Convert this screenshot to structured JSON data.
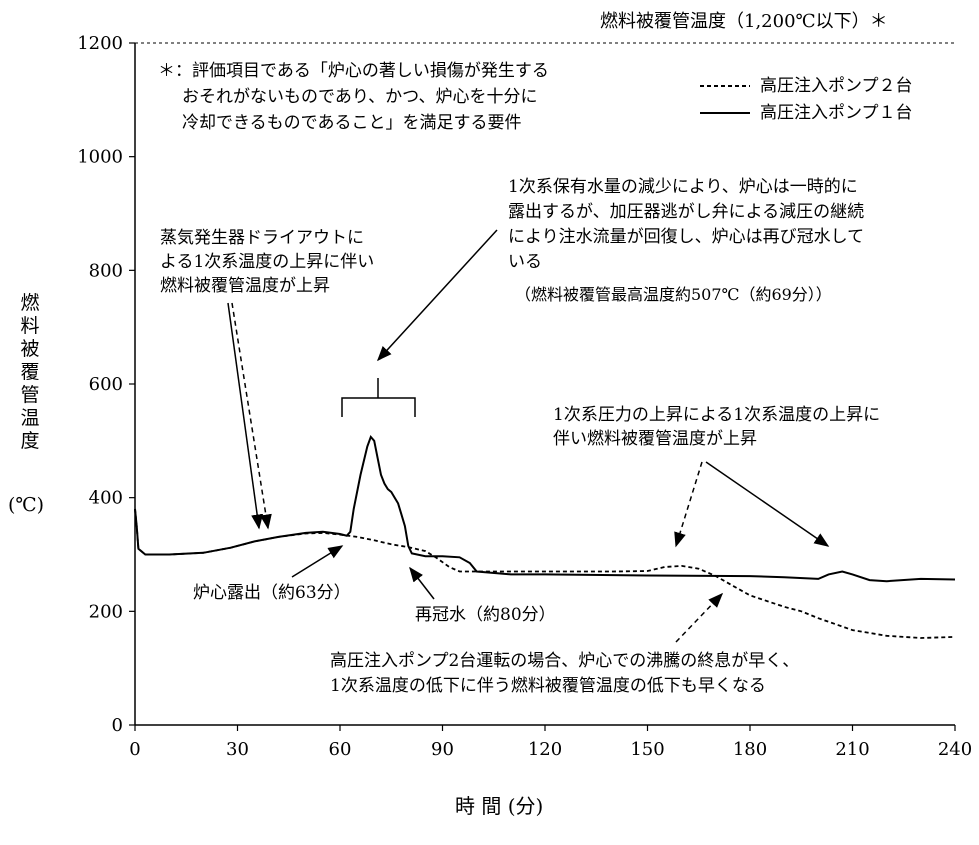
{
  "chart_data": {
    "type": "line",
    "ylabel": "燃料被覆管温度",
    "yunit": "(℃)",
    "xlabel": "時 間 (分)",
    "xlim": [
      0,
      240
    ],
    "ylim": [
      0,
      1200
    ],
    "xticks": [
      0,
      30,
      60,
      90,
      120,
      150,
      180,
      210,
      240
    ],
    "yticks": [
      0,
      200,
      400,
      600,
      800,
      1000,
      1200
    ],
    "grid": false,
    "legend_position": "top-right",
    "limit_line": {
      "value": 1200,
      "label": "燃料被覆管温度（1,200℃以下）＊"
    },
    "series": [
      {
        "name": "高圧注入ポンプ２台",
        "style": "dashed",
        "x": [
          0,
          0.5,
          1,
          3,
          10,
          20,
          28,
          35,
          42,
          50,
          55,
          60,
          65,
          70,
          75,
          80,
          85,
          88,
          92,
          95,
          100,
          110,
          120,
          130,
          140,
          150,
          155,
          160,
          165,
          170,
          175,
          180,
          190,
          195,
          200,
          210,
          220,
          230,
          240
        ],
        "values": [
          380,
          350,
          310,
          300,
          300,
          303,
          312,
          323,
          331,
          337,
          338,
          335,
          331,
          325,
          318,
          313,
          306,
          295,
          278,
          270,
          270,
          270,
          270,
          270,
          270,
          271,
          278,
          280,
          275,
          262,
          245,
          228,
          208,
          200,
          188,
          167,
          157,
          153,
          155
        ]
      },
      {
        "name": "高圧注入ポンプ１台",
        "style": "solid",
        "x": [
          0,
          0.5,
          1,
          3,
          10,
          20,
          28,
          35,
          42,
          50,
          55,
          60,
          62,
          63,
          64,
          66,
          68,
          69,
          70,
          71,
          72,
          73,
          74,
          75,
          76,
          77,
          78,
          79,
          80,
          81,
          85,
          90,
          95,
          98,
          100,
          110,
          120,
          150,
          180,
          190,
          200,
          203,
          207,
          210,
          215,
          220,
          230,
          240
        ],
        "values": [
          380,
          350,
          310,
          300,
          300,
          303,
          312,
          323,
          331,
          338,
          340,
          336,
          333,
          340,
          380,
          440,
          490,
          507,
          500,
          470,
          440,
          425,
          415,
          410,
          400,
          390,
          370,
          350,
          315,
          302,
          297,
          297,
          295,
          285,
          270,
          265,
          265,
          263,
          262,
          260,
          257,
          265,
          270,
          265,
          255,
          253,
          257,
          256
        ]
      }
    ],
    "annotations": {
      "note_lines": [
        "＊：評価項目である「炉心の著しい損傷が発生する",
        "おそれがないものであり、かつ、炉心を十分に",
        "冷却できるものであること」を満足する要件"
      ],
      "uncover_lines": [
        "1次系保有水量の減少により、炉心は一時的に",
        "露出するが、加圧器逃がし弁による減圧の継続",
        "により注水流量が回復し、炉心は再び冠水して",
        "いる"
      ],
      "uncover_peak": "（燃料被覆管最高温度約507℃（約69分））",
      "sg_dryout_lines": [
        "蒸気発生器ドライアウトに",
        "よる1次系温度の上昇に伴い",
        "燃料被覆管温度が上昇"
      ],
      "pressure_rise_lines": [
        "1次系圧力の上昇による1次系温度の上昇に",
        "伴い燃料被覆管温度が上昇"
      ],
      "core_exposure": "炉心露出（約63分）",
      "recovery": "再冠水（約80分）",
      "two_pump_lines": [
        "高圧注入ポンプ2台運転の場合、炉心での沸騰の終息が早く、",
        "1次系温度の低下に伴う燃料被覆管温度の低下も早くなる"
      ]
    }
  }
}
